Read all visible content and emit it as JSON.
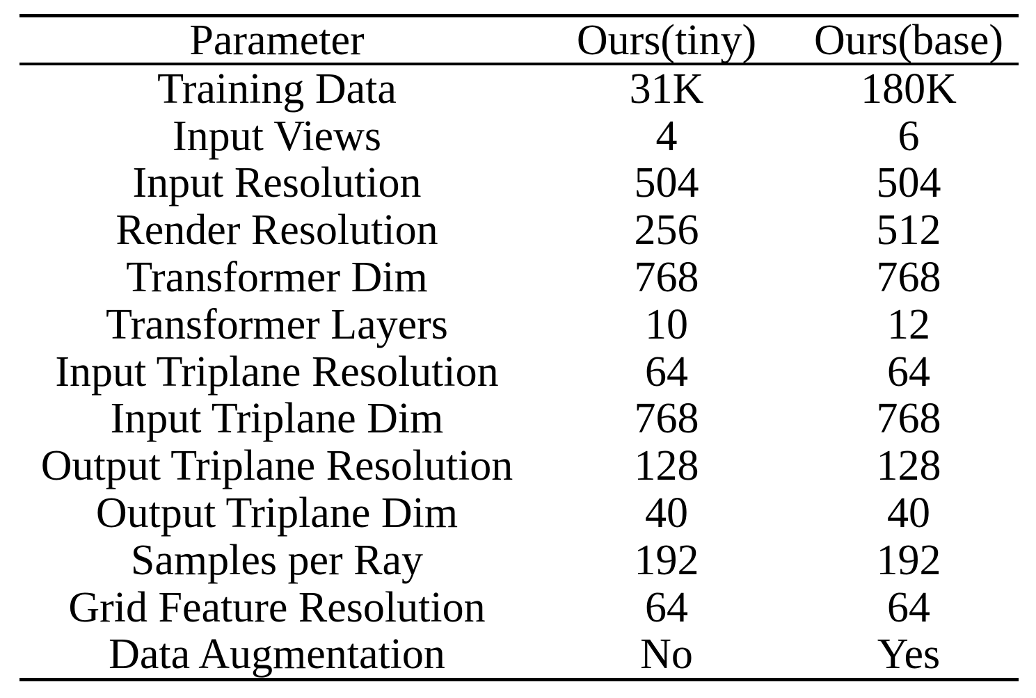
{
  "page": {
    "background_color": "#ffffff",
    "text_color": "#000000",
    "rule_color": "#000000"
  },
  "chart_data": {
    "type": "table",
    "columns": [
      "Parameter",
      "Ours(tiny)",
      "Ours(base)"
    ],
    "rows": [
      [
        "Training Data",
        "31K",
        "180K"
      ],
      [
        "Input Views",
        "4",
        "6"
      ],
      [
        "Input Resolution",
        "504",
        "504"
      ],
      [
        "Render Resolution",
        "256",
        "512"
      ],
      [
        "Transformer Dim",
        "768",
        "768"
      ],
      [
        "Transformer Layers",
        "10",
        "12"
      ],
      [
        "Input Triplane Resolution",
        "64",
        "64"
      ],
      [
        "Input Triplane Dim",
        "768",
        "768"
      ],
      [
        "Output Triplane Resolution",
        "128",
        "128"
      ],
      [
        "Output Triplane Dim",
        "40",
        "40"
      ],
      [
        "Samples per Ray",
        "192",
        "192"
      ],
      [
        "Grid Feature Resolution",
        "64",
        "64"
      ],
      [
        "Data Augmentation",
        "No",
        "Yes"
      ]
    ]
  }
}
